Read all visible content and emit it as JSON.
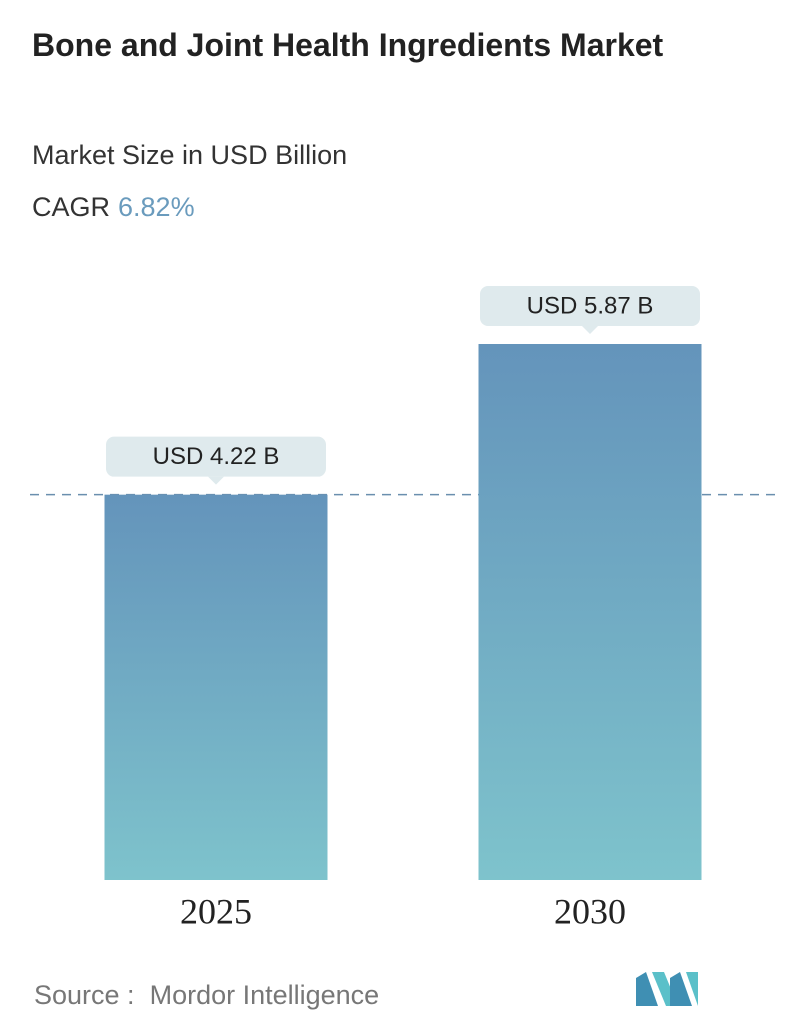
{
  "chart_data": {
    "type": "bar",
    "title": "Bone and Joint Health Ingredients Market",
    "subtitle": "Market Size in USD Billion",
    "cagr_label": "CAGR",
    "cagr": "6.82%",
    "categories": [
      "2025",
      "2030"
    ],
    "values": [
      4.22,
      5.87
    ],
    "value_labels": [
      "USD 4.22 B",
      "USD 5.87 B"
    ],
    "color_top": "#6494bb",
    "color_bottom": "#7ec3cc",
    "source_label": "Source :",
    "source": "Mordor Intelligence"
  }
}
